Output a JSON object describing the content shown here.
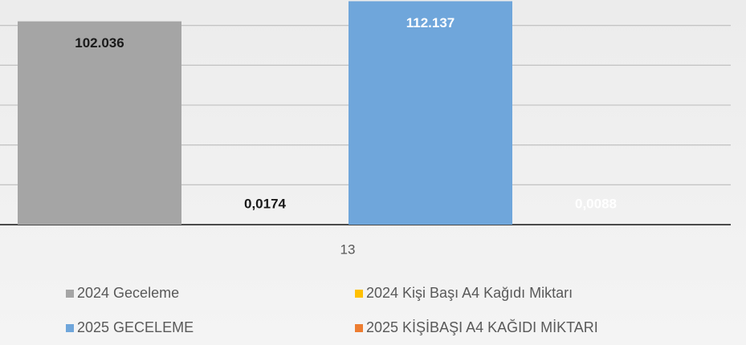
{
  "chart_data": {
    "type": "bar",
    "categories": [
      "13"
    ],
    "series": [
      {
        "name": "2024 Geceleme",
        "color": "#a5a5a5",
        "label_color": "#1a1a1a",
        "values": [
          102036
        ],
        "value_labels": [
          "102.036"
        ]
      },
      {
        "name": "2024 Kişi Başı A4 Kağıdı Miktarı",
        "color": "#ffc000",
        "label_color": "#1a1a1a",
        "values": [
          0.0174
        ],
        "value_labels": [
          "0,0174"
        ]
      },
      {
        "name": "2025 GECELEME",
        "color": "#6fa6db",
        "label_color": "#ffffff",
        "values": [
          112137
        ],
        "value_labels": [
          "112.137"
        ]
      },
      {
        "name": "2025 KİŞİBAŞI A4 KAĞIDI MİKTARI",
        "color": "#ed7d31",
        "label_color": "#ffffff",
        "values": [
          0.0088
        ],
        "value_labels": [
          "0,0088"
        ]
      }
    ],
    "ylim": [
      0,
      120000
    ],
    "yticks": [
      0,
      20000,
      40000,
      60000,
      80000,
      100000
    ],
    "grid": true
  }
}
